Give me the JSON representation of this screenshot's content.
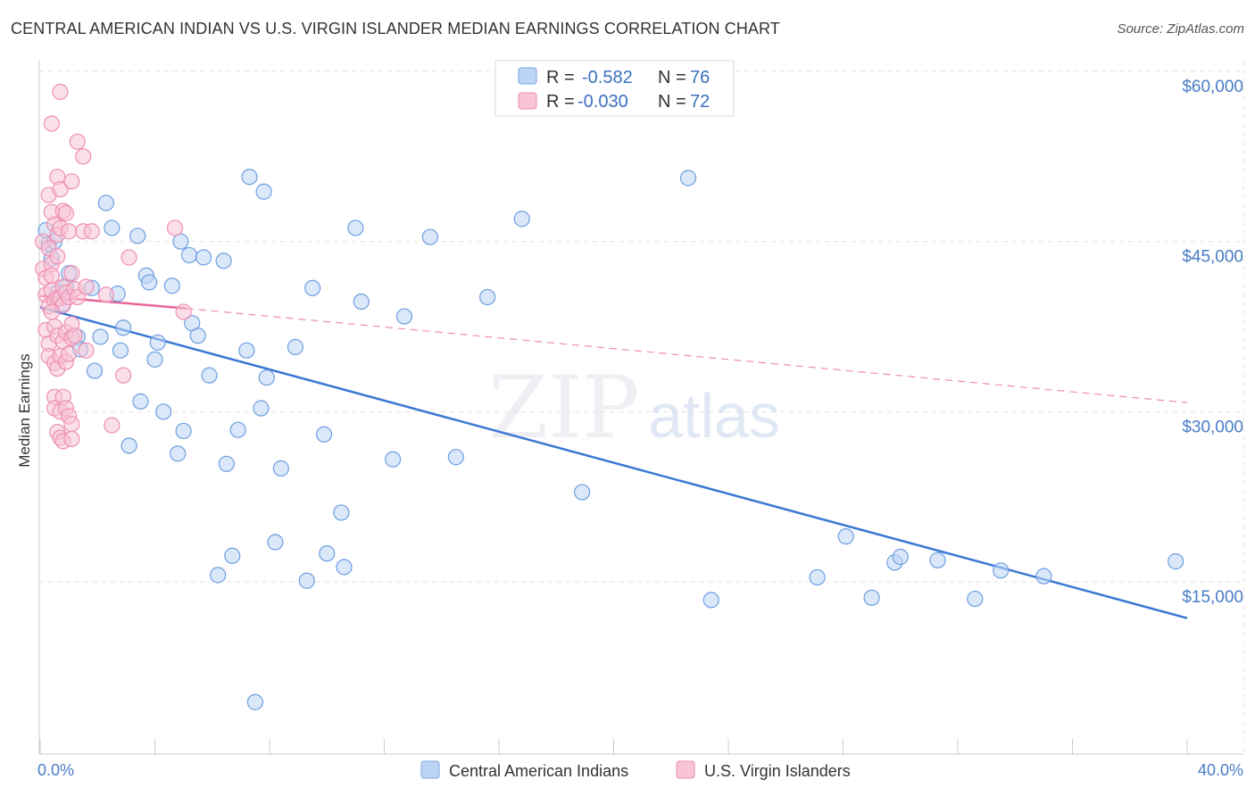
{
  "title": "CENTRAL AMERICAN INDIAN VS U.S. VIRGIN ISLANDER MEDIAN EARNINGS CORRELATION CHART",
  "source": "Source: ZipAtlas.com",
  "watermark": {
    "zip": "ZIP",
    "atlas": "atlas"
  },
  "colors": {
    "blue": "#3a78d4",
    "blue_fill": "#bdd5f5",
    "pink": "#e8649a",
    "pink_fill": "#f8c4d6",
    "grid": "#e3e3e3"
  },
  "legend": {
    "rows": [
      {
        "r_label": "R =",
        "r_value": "-0.582",
        "n_label": "N =",
        "n_value": "76"
      },
      {
        "r_label": "R =",
        "r_value": "-0.030",
        "n_label": "N =",
        "n_value": "72"
      }
    ]
  },
  "chart_data": {
    "type": "scatter",
    "title": "CENTRAL AMERICAN INDIAN VS U.S. VIRGIN ISLANDER MEDIAN EARNINGS CORRELATION CHART",
    "xlabel": "",
    "ylabel": "Median Earnings",
    "xlim": [
      0,
      40
    ],
    "ylim": [
      0,
      63000
    ],
    "x_tick_labels": [
      "0.0%",
      "40.0%"
    ],
    "y_ticks": [
      15000,
      30000,
      45000,
      60000
    ],
    "y_tick_labels": [
      "$15,000",
      "$30,000",
      "$45,000",
      "$60,000"
    ],
    "grid": true,
    "legend_placement": "top-center",
    "series": [
      {
        "name": "Central American Indians",
        "color": "#3a78d4",
        "r": "-0.582",
        "n": "76",
        "trend": {
          "x": [
            0,
            40
          ],
          "y": [
            39200,
            11800
          ],
          "style": "solid"
        },
        "points": [
          [
            0.2,
            46000
          ],
          [
            0.3,
            44800
          ],
          [
            0.4,
            43500
          ],
          [
            0.5,
            45000
          ],
          [
            0.6,
            40500
          ],
          [
            0.8,
            39500
          ],
          [
            0.9,
            41000
          ],
          [
            1.0,
            42200
          ],
          [
            1.3,
            36600
          ],
          [
            1.4,
            35500
          ],
          [
            1.8,
            40900
          ],
          [
            1.9,
            33600
          ],
          [
            2.1,
            36600
          ],
          [
            2.3,
            48400
          ],
          [
            2.5,
            46200
          ],
          [
            2.7,
            40400
          ],
          [
            2.8,
            35400
          ],
          [
            2.9,
            37400
          ],
          [
            3.1,
            27000
          ],
          [
            3.4,
            45500
          ],
          [
            3.5,
            30900
          ],
          [
            3.7,
            42000
          ],
          [
            3.8,
            41400
          ],
          [
            4.0,
            34600
          ],
          [
            4.1,
            36100
          ],
          [
            4.3,
            30000
          ],
          [
            4.6,
            41100
          ],
          [
            4.8,
            26300
          ],
          [
            4.9,
            45000
          ],
          [
            5.0,
            28300
          ],
          [
            5.2,
            43800
          ],
          [
            5.3,
            37800
          ],
          [
            5.5,
            36700
          ],
          [
            5.7,
            43600
          ],
          [
            5.9,
            33200
          ],
          [
            6.2,
            15600
          ],
          [
            6.4,
            43300
          ],
          [
            6.5,
            25400
          ],
          [
            6.7,
            17300
          ],
          [
            6.9,
            28400
          ],
          [
            7.2,
            35400
          ],
          [
            7.3,
            50700
          ],
          [
            7.5,
            4400
          ],
          [
            7.7,
            30300
          ],
          [
            7.8,
            49400
          ],
          [
            7.9,
            33000
          ],
          [
            8.2,
            18500
          ],
          [
            8.4,
            25000
          ],
          [
            8.9,
            35700
          ],
          [
            9.3,
            15100
          ],
          [
            9.5,
            40900
          ],
          [
            9.9,
            28000
          ],
          [
            10.0,
            17500
          ],
          [
            10.5,
            21100
          ],
          [
            10.6,
            16300
          ],
          [
            11.0,
            46200
          ],
          [
            11.2,
            39700
          ],
          [
            12.3,
            25800
          ],
          [
            12.7,
            38400
          ],
          [
            13.6,
            45400
          ],
          [
            14.5,
            26000
          ],
          [
            15.6,
            40100
          ],
          [
            16.8,
            47000
          ],
          [
            18.9,
            22900
          ],
          [
            22.6,
            50600
          ],
          [
            23.4,
            13400
          ],
          [
            27.1,
            15400
          ],
          [
            28.1,
            19000
          ],
          [
            29.0,
            13600
          ],
          [
            29.8,
            16700
          ],
          [
            30.0,
            17200
          ],
          [
            31.3,
            16900
          ],
          [
            32.6,
            13500
          ],
          [
            33.5,
            16000
          ],
          [
            35.0,
            15500
          ],
          [
            39.6,
            16800
          ]
        ]
      },
      {
        "name": "U.S. Virgin Islanders",
        "color": "#e8649a",
        "r": "-0.030",
        "n": "72",
        "trend": {
          "x": [
            0,
            5.1
          ],
          "y": [
            40200,
            39100
          ],
          "style": "solid",
          "extended": {
            "x": [
              5.1,
              40
            ],
            "y": [
              39100,
              30800
            ],
            "style": "dashed"
          }
        },
        "points": [
          [
            0.1,
            45000
          ],
          [
            0.1,
            42600
          ],
          [
            0.2,
            41800
          ],
          [
            0.2,
            40300
          ],
          [
            0.2,
            37200
          ],
          [
            0.3,
            44400
          ],
          [
            0.3,
            39300
          ],
          [
            0.3,
            36000
          ],
          [
            0.3,
            49100
          ],
          [
            0.3,
            34900
          ],
          [
            0.4,
            55400
          ],
          [
            0.4,
            47600
          ],
          [
            0.4,
            43000
          ],
          [
            0.4,
            42000
          ],
          [
            0.4,
            40700
          ],
          [
            0.5,
            46500
          ],
          [
            0.5,
            39800
          ],
          [
            0.5,
            37500
          ],
          [
            0.5,
            34300
          ],
          [
            0.5,
            31300
          ],
          [
            0.5,
            30300
          ],
          [
            0.6,
            50700
          ],
          [
            0.6,
            45600
          ],
          [
            0.6,
            40000
          ],
          [
            0.6,
            36700
          ],
          [
            0.6,
            33800
          ],
          [
            0.6,
            28200
          ],
          [
            0.7,
            58200
          ],
          [
            0.7,
            49600
          ],
          [
            0.7,
            46200
          ],
          [
            0.7,
            40000
          ],
          [
            0.7,
            34900
          ],
          [
            0.7,
            30000
          ],
          [
            0.7,
            27700
          ],
          [
            0.8,
            47700
          ],
          [
            0.8,
            41000
          ],
          [
            0.8,
            39400
          ],
          [
            0.8,
            36200
          ],
          [
            0.8,
            31300
          ],
          [
            0.8,
            27400
          ],
          [
            0.9,
            47500
          ],
          [
            0.9,
            40500
          ],
          [
            0.9,
            37000
          ],
          [
            0.9,
            34400
          ],
          [
            0.9,
            30300
          ],
          [
            1.0,
            45900
          ],
          [
            1.0,
            40100
          ],
          [
            1.0,
            35100
          ],
          [
            1.0,
            29600
          ],
          [
            1.1,
            50300
          ],
          [
            1.1,
            42200
          ],
          [
            1.1,
            37700
          ],
          [
            1.1,
            36500
          ],
          [
            1.1,
            28900
          ],
          [
            1.1,
            27600
          ],
          [
            1.2,
            40800
          ],
          [
            1.2,
            36700
          ],
          [
            1.3,
            53800
          ],
          [
            1.3,
            40100
          ],
          [
            1.5,
            52500
          ],
          [
            1.5,
            45900
          ],
          [
            1.6,
            35400
          ],
          [
            1.8,
            45900
          ],
          [
            2.3,
            40300
          ],
          [
            2.5,
            28800
          ],
          [
            2.9,
            33200
          ],
          [
            3.1,
            43600
          ],
          [
            4.7,
            46200
          ],
          [
            5.0,
            38800
          ],
          [
            1.6,
            41000
          ],
          [
            0.4,
            38800
          ],
          [
            0.6,
            43700
          ]
        ]
      }
    ]
  }
}
